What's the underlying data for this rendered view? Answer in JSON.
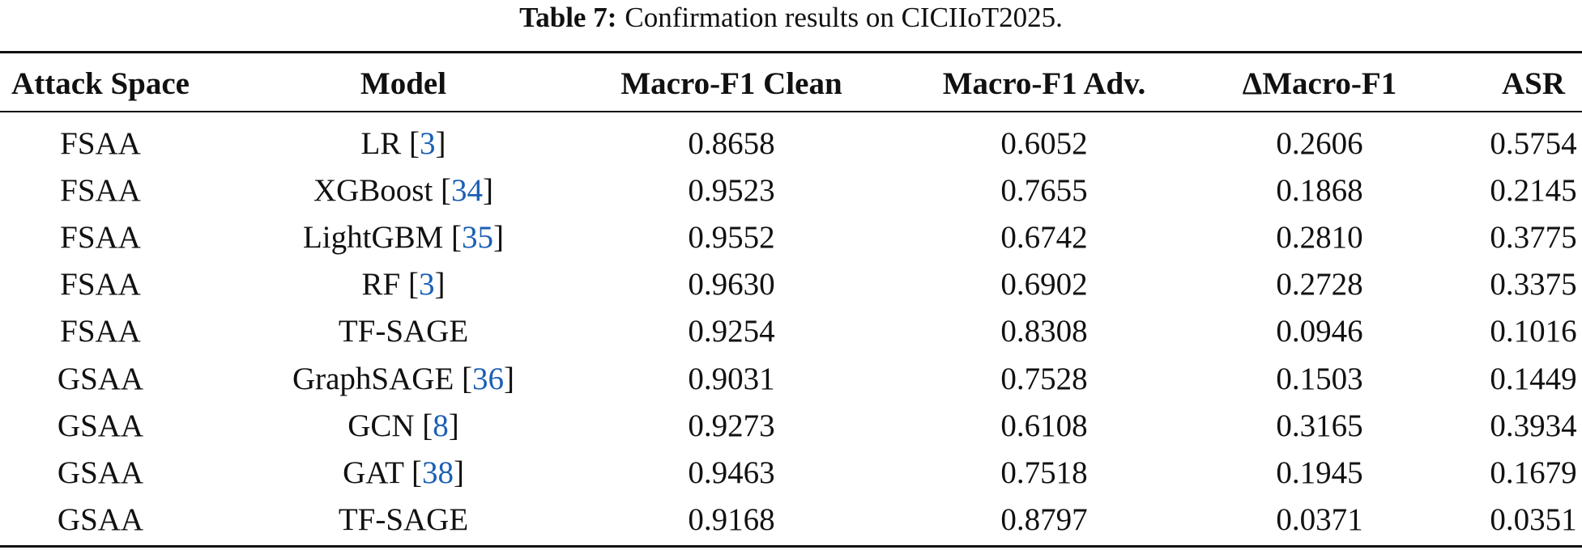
{
  "caption": {
    "label": "Table 7:",
    "text": "Confirmation results on CICIIoT2025."
  },
  "table": {
    "columns": [
      "Attack Space",
      "Model",
      "Macro-F1 Clean",
      "Macro-F1 Adv.",
      "ΔMacro-F1",
      "ASR"
    ],
    "rows": [
      [
        "FSAA",
        {
          "name": "LR",
          "ref": "3"
        },
        "0.8658",
        "0.6052",
        "0.2606",
        "0.5754"
      ],
      [
        "FSAA",
        {
          "name": "XGBoost",
          "ref": "34"
        },
        "0.9523",
        "0.7655",
        "0.1868",
        "0.2145"
      ],
      [
        "FSAA",
        {
          "name": "LightGBM",
          "ref": "35"
        },
        "0.9552",
        "0.6742",
        "0.2810",
        "0.3775"
      ],
      [
        "FSAA",
        {
          "name": "RF",
          "ref": "3"
        },
        "0.9630",
        "0.6902",
        "0.2728",
        "0.3375"
      ],
      [
        "FSAA",
        {
          "name": "TF-SAGE"
        },
        "0.9254",
        "0.8308",
        "0.0946",
        "0.1016"
      ],
      [
        "GSAA",
        {
          "name": "GraphSAGE",
          "ref": "36"
        },
        "0.9031",
        "0.7528",
        "0.1503",
        "0.1449"
      ],
      [
        "GSAA",
        {
          "name": "GCN",
          "ref": "8"
        },
        "0.9273",
        "0.6108",
        "0.3165",
        "0.3934"
      ],
      [
        "GSAA",
        {
          "name": "GAT",
          "ref": "38"
        },
        "0.9463",
        "0.7518",
        "0.1945",
        "0.1679"
      ],
      [
        "GSAA",
        {
          "name": "TF-SAGE"
        },
        "0.9168",
        "0.8797",
        "0.0371",
        "0.0351"
      ]
    ]
  }
}
